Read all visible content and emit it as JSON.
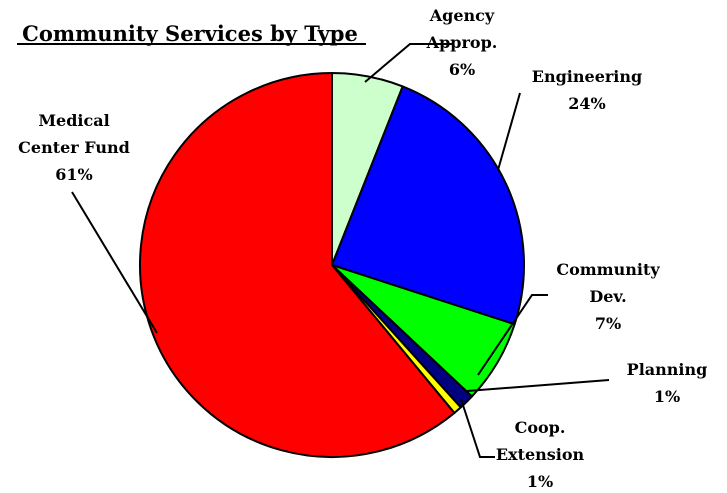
{
  "chart_data": {
    "type": "pie",
    "title": "Community Services by Type",
    "start_angle_deg": 0,
    "direction": "clockwise",
    "slices": [
      {
        "label_lines": [
          "Agency",
          "Approp."
        ],
        "pct_label": "6%",
        "value": 6,
        "color": "#ccffcc"
      },
      {
        "label_lines": [
          "Engineering"
        ],
        "pct_label": "24%",
        "value": 24,
        "color": "#0000ff"
      },
      {
        "label_lines": [
          "Community",
          "Dev."
        ],
        "pct_label": "7%",
        "value": 7,
        "color": "#00ff00"
      },
      {
        "label_lines": [
          "Planning"
        ],
        "pct_label": "1%",
        "value": 1.3,
        "color": "#000080"
      },
      {
        "label_lines": [
          "Coop.",
          "Extension"
        ],
        "pct_label": "1%",
        "value": 0.7,
        "color": "#ffff00"
      },
      {
        "label_lines": [
          "Medical",
          "Center Fund"
        ],
        "pct_label": "61%",
        "value": 61,
        "color": "#ff0000"
      }
    ],
    "legend": "none"
  }
}
